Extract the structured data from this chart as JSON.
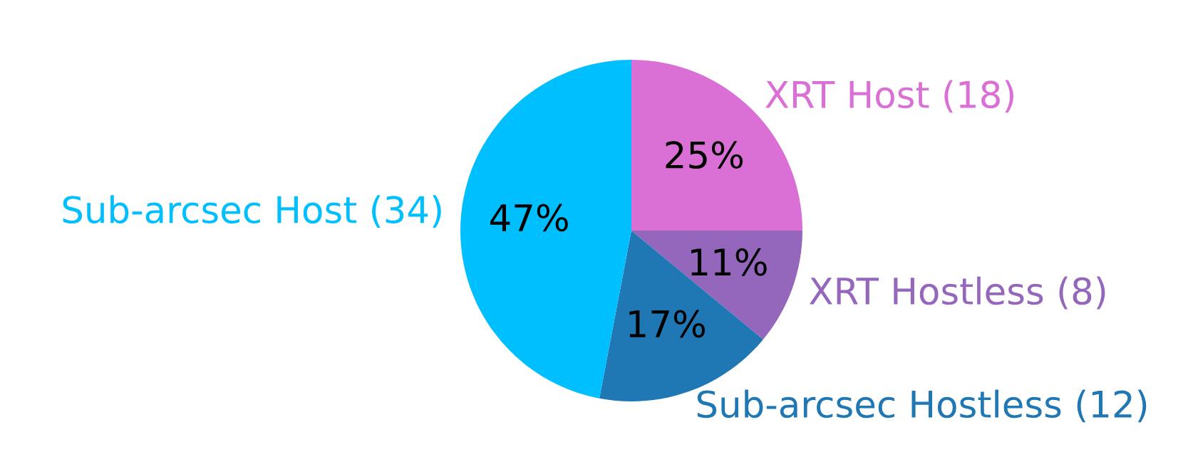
{
  "chart_data": {
    "type": "pie",
    "categories": [
      "XRT Host (18)",
      "XRT Hostless (8)",
      "Sub-arcsec Hostless (12)",
      "Sub-arcsec Host (34)"
    ],
    "values": [
      25,
      11,
      17,
      47
    ],
    "colors": [
      "#da70d6",
      "#9467bd",
      "#1f77b4",
      "#00bfff"
    ],
    "value_labels": [
      "25%",
      "11%",
      "17%",
      "47%"
    ]
  }
}
